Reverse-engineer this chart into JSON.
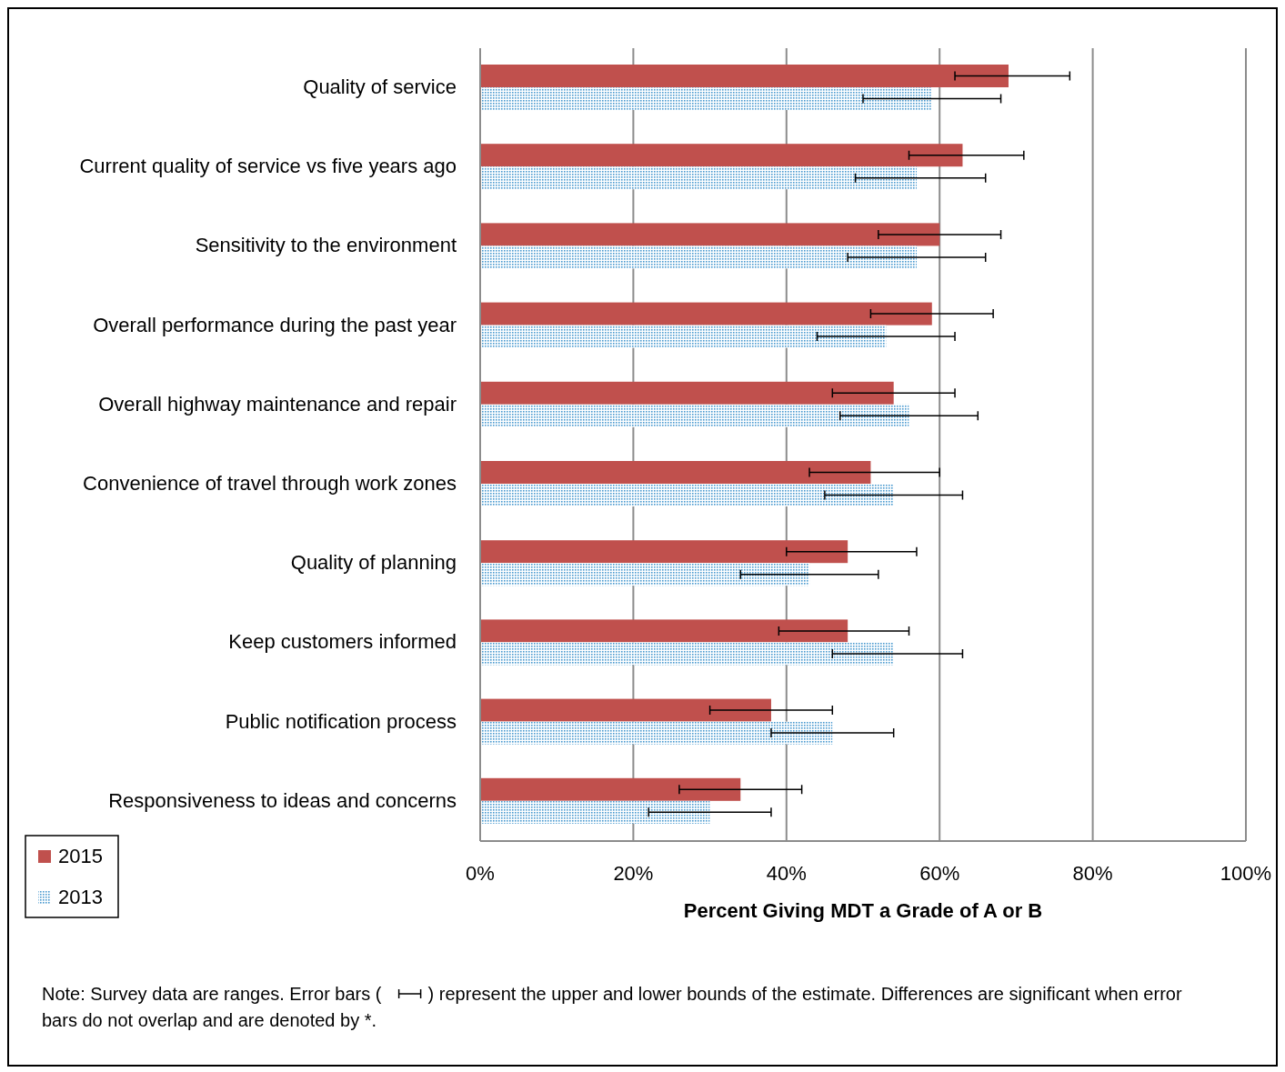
{
  "chart_data": {
    "type": "bar",
    "orientation": "horizontal",
    "categories": [
      "Quality of service",
      "Current quality of service vs five years ago",
      "Sensitivity to the environment",
      "Overall performance during the past year",
      "Overall highway maintenance and repair",
      "Convenience of travel through work zones",
      "Quality of planning",
      "Keep customers informed",
      "Public notification process",
      "Responsiveness to ideas and concerns"
    ],
    "series": [
      {
        "name": "2015",
        "color": "#c0504d",
        "values": [
          69,
          63,
          60,
          59,
          54,
          51,
          48,
          48,
          38,
          34
        ],
        "errors": [
          [
            62,
            77
          ],
          [
            56,
            71
          ],
          [
            52,
            68
          ],
          [
            51,
            67
          ],
          [
            46,
            62
          ],
          [
            43,
            60
          ],
          [
            40,
            57
          ],
          [
            39,
            56
          ],
          [
            30,
            46
          ],
          [
            26,
            42
          ]
        ]
      },
      {
        "name": "2013",
        "color": "#4a9ad0",
        "values": [
          59,
          57,
          57,
          53,
          56,
          54,
          43,
          54,
          46,
          30
        ],
        "errors": [
          [
            50,
            68
          ],
          [
            49,
            66
          ],
          [
            48,
            66
          ],
          [
            44,
            62
          ],
          [
            47,
            65
          ],
          [
            45,
            63
          ],
          [
            34,
            52
          ],
          [
            46,
            63
          ],
          [
            38,
            54
          ],
          [
            22,
            38
          ]
        ]
      }
    ],
    "xlabel": "Percent Giving MDT a Grade of A or B",
    "xlim": [
      0,
      100
    ],
    "xticks": [
      {
        "value": 0,
        "label": "0%"
      },
      {
        "value": 20,
        "label": "20%"
      },
      {
        "value": 40,
        "label": "40%"
      },
      {
        "value": 60,
        "label": "60%"
      },
      {
        "value": 80,
        "label": "80%"
      },
      {
        "value": 100,
        "label": "100%"
      }
    ],
    "grid": "x",
    "legend": "bottom left",
    "annotations": [
      "Note:  Survey data are ranges.  Error bars (",
      ") represent the upper and lower bounds of the estimate. Differences are significant when error bars do not overlap and are denoted by *."
    ]
  }
}
